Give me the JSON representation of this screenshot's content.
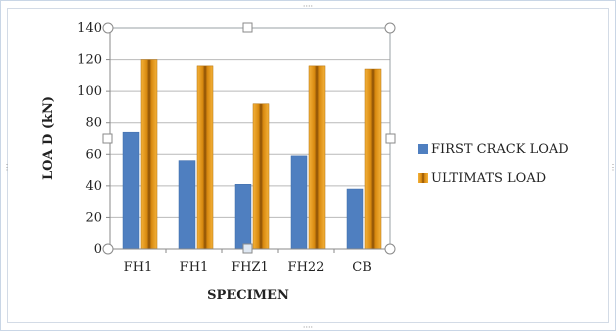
{
  "chart_data": {
    "type": "bar",
    "categories": [
      "FH1",
      "FH1",
      "FHZ1",
      "FH22",
      "CB"
    ],
    "series": [
      {
        "name": "FIRST CRACK LOAD",
        "values": [
          74,
          56,
          41,
          59,
          38
        ],
        "color": "#4f7fc0"
      },
      {
        "name": "ULTIMATS LOAD",
        "values": [
          120,
          116,
          92,
          116,
          114
        ],
        "color": "#e89a1a"
      }
    ],
    "xlabel": "SPECIMEN",
    "ylabel": "LOA D (kN)",
    "ylim": [
      0,
      140
    ],
    "yticks": [
      0,
      20,
      40,
      60,
      80,
      100,
      120,
      140
    ],
    "grid": true,
    "legend_position": "right"
  }
}
